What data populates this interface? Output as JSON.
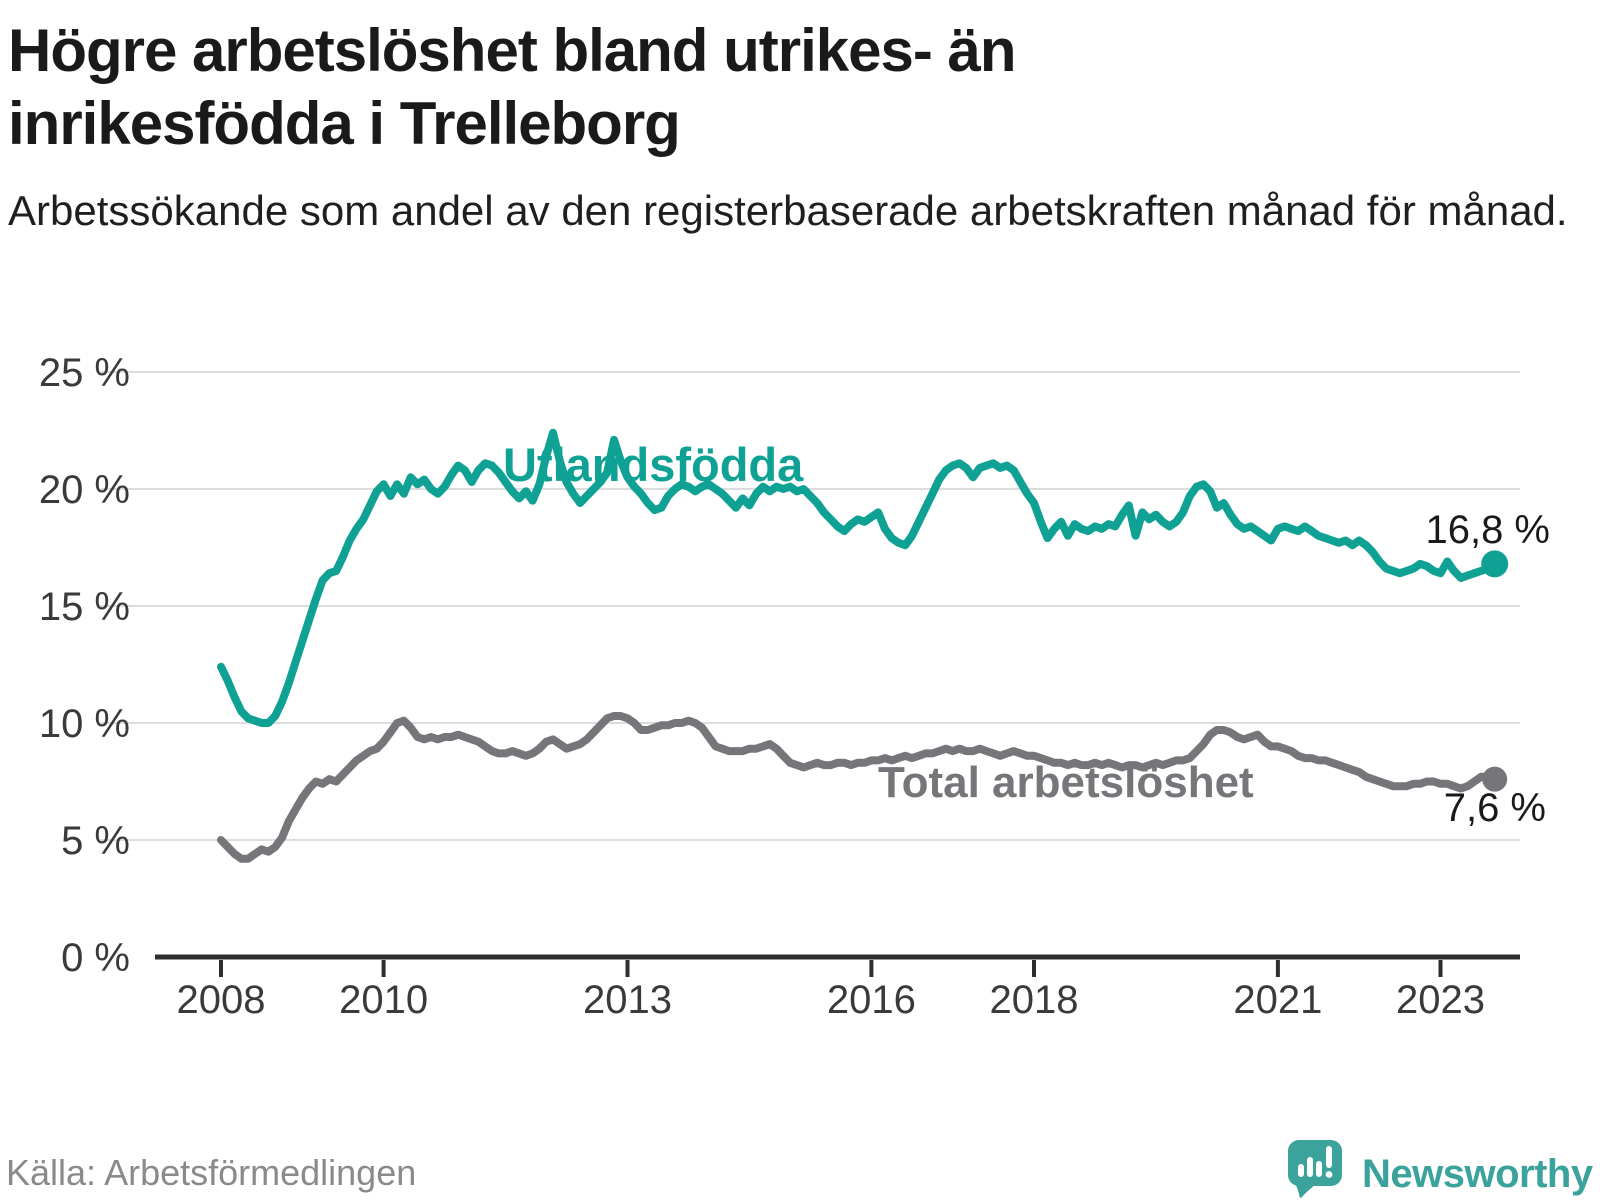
{
  "title": "Högre arbetslöshet bland utrikes- än inrikesfödda i Trelleborg",
  "subtitle": "Arbetssökande som andel av den registerbaserade arbetskraften månad för månad.",
  "source": "Källa: Arbetsförmedlingen",
  "brand": {
    "name": "Newsworthy",
    "color": "#3BA29C"
  },
  "colors": {
    "foreign_born_line": "#10A195",
    "total_line": "#76767A",
    "grid": "#DCDCDC",
    "axis": "#2E2E2E",
    "tick_label": "#3a3a3a",
    "value_label": "#1a1a1a"
  },
  "chart_data": {
    "type": "line",
    "title": "Högre arbetslöshet bland utrikes- än inrikesfödda i Trelleborg",
    "subtitle": "Arbetssökande som andel av den registerbaserade arbetskraften månad för månad.",
    "ylabel": "",
    "xlabel": "",
    "ylim": [
      0,
      25
    ],
    "grid": "horizontal",
    "legend_position": "inline-labels",
    "x_start": "2008-01",
    "x_end": "2023-09",
    "frequency": "monthly",
    "y_axis": {
      "ticks": [
        {
          "value": 0,
          "label": "0 %"
        },
        {
          "value": 5,
          "label": "5 %"
        },
        {
          "value": 10,
          "label": "10 %"
        },
        {
          "value": 15,
          "label": "15 %"
        },
        {
          "value": 20,
          "label": "20 %"
        },
        {
          "value": 25,
          "label": "25 %"
        }
      ]
    },
    "x_axis": {
      "ticks": [
        {
          "value": 2008,
          "label": "2008"
        },
        {
          "value": 2010,
          "label": "2010"
        },
        {
          "value": 2013,
          "label": "2013"
        },
        {
          "value": 2016,
          "label": "2016"
        },
        {
          "value": 2018,
          "label": "2018"
        },
        {
          "value": 2021,
          "label": "2021"
        },
        {
          "value": 2023,
          "label": "2023"
        }
      ]
    },
    "series": [
      {
        "name": "Utlandsfödda",
        "color": "#10A195",
        "end_label": "16,8 %",
        "end_value": 16.8,
        "values": [
          12.4,
          11.8,
          11.1,
          10.5,
          10.2,
          10.1,
          10.0,
          10.0,
          10.3,
          10.9,
          11.7,
          12.6,
          13.5,
          14.4,
          15.3,
          16.1,
          16.4,
          16.5,
          17.1,
          17.8,
          18.3,
          18.7,
          19.3,
          19.9,
          20.2,
          19.7,
          20.2,
          19.8,
          20.5,
          20.2,
          20.4,
          20.0,
          19.8,
          20.1,
          20.6,
          21.0,
          20.8,
          20.3,
          20.8,
          21.1,
          21.0,
          20.7,
          20.3,
          19.9,
          19.6,
          19.9,
          19.5,
          20.2,
          21.4,
          22.4,
          21.2,
          20.3,
          19.8,
          19.4,
          19.7,
          20.0,
          20.3,
          20.7,
          22.1,
          21.2,
          20.5,
          20.1,
          19.8,
          19.4,
          19.1,
          19.2,
          19.7,
          20.0,
          20.2,
          20.1,
          19.9,
          20.1,
          20.2,
          20.0,
          19.8,
          19.5,
          19.2,
          19.6,
          19.3,
          19.8,
          20.1,
          19.9,
          20.1,
          20.0,
          20.1,
          19.9,
          20.0,
          19.7,
          19.4,
          19.0,
          18.7,
          18.4,
          18.2,
          18.5,
          18.7,
          18.6,
          18.8,
          19.0,
          18.3,
          17.9,
          17.7,
          17.6,
          18.0,
          18.6,
          19.2,
          19.8,
          20.4,
          20.8,
          21.0,
          21.1,
          20.9,
          20.5,
          20.9,
          21.0,
          21.1,
          20.9,
          21.0,
          20.8,
          20.3,
          19.8,
          19.4,
          18.6,
          17.9,
          18.3,
          18.6,
          18.0,
          18.5,
          18.3,
          18.2,
          18.4,
          18.3,
          18.5,
          18.4,
          18.9,
          19.3,
          18.0,
          19.0,
          18.7,
          18.9,
          18.6,
          18.4,
          18.6,
          19.0,
          19.7,
          20.1,
          20.2,
          19.9,
          19.2,
          19.4,
          18.9,
          18.5,
          18.3,
          18.4,
          18.2,
          18.0,
          17.8,
          18.3,
          18.4,
          18.3,
          18.2,
          18.4,
          18.2,
          18.0,
          17.9,
          17.8,
          17.7,
          17.8,
          17.6,
          17.8,
          17.6,
          17.3,
          16.9,
          16.6,
          16.5,
          16.4,
          16.5,
          16.6,
          16.8,
          16.7,
          16.5,
          16.4,
          16.9,
          16.5,
          16.2,
          16.3,
          16.4,
          16.5,
          16.6,
          16.8
        ]
      },
      {
        "name": "Total arbetslöshet",
        "color": "#76767A",
        "end_label": "7,6 %",
        "end_value": 7.6,
        "values": [
          5.0,
          4.7,
          4.4,
          4.2,
          4.2,
          4.4,
          4.6,
          4.5,
          4.7,
          5.1,
          5.8,
          6.3,
          6.8,
          7.2,
          7.5,
          7.4,
          7.6,
          7.5,
          7.8,
          8.1,
          8.4,
          8.6,
          8.8,
          8.9,
          9.2,
          9.6,
          10.0,
          10.1,
          9.8,
          9.4,
          9.3,
          9.4,
          9.3,
          9.4,
          9.4,
          9.5,
          9.4,
          9.3,
          9.2,
          9.0,
          8.8,
          8.7,
          8.7,
          8.8,
          8.7,
          8.6,
          8.7,
          8.9,
          9.2,
          9.3,
          9.1,
          8.9,
          9.0,
          9.1,
          9.3,
          9.6,
          9.9,
          10.2,
          10.3,
          10.3,
          10.2,
          10.0,
          9.7,
          9.7,
          9.8,
          9.9,
          9.9,
          10.0,
          10.0,
          10.1,
          10.0,
          9.8,
          9.4,
          9.0,
          8.9,
          8.8,
          8.8,
          8.8,
          8.9,
          8.9,
          9.0,
          9.1,
          8.9,
          8.6,
          8.3,
          8.2,
          8.1,
          8.2,
          8.3,
          8.2,
          8.2,
          8.3,
          8.3,
          8.2,
          8.3,
          8.3,
          8.4,
          8.4,
          8.5,
          8.4,
          8.5,
          8.6,
          8.5,
          8.6,
          8.7,
          8.7,
          8.8,
          8.9,
          8.8,
          8.9,
          8.8,
          8.8,
          8.9,
          8.8,
          8.7,
          8.6,
          8.7,
          8.8,
          8.7,
          8.6,
          8.6,
          8.5,
          8.4,
          8.3,
          8.3,
          8.2,
          8.3,
          8.2,
          8.2,
          8.3,
          8.2,
          8.3,
          8.2,
          8.1,
          8.2,
          8.2,
          8.1,
          8.2,
          8.3,
          8.2,
          8.3,
          8.4,
          8.4,
          8.5,
          8.8,
          9.1,
          9.5,
          9.7,
          9.7,
          9.6,
          9.4,
          9.3,
          9.4,
          9.5,
          9.2,
          9.0,
          9.0,
          8.9,
          8.8,
          8.6,
          8.5,
          8.5,
          8.4,
          8.4,
          8.3,
          8.2,
          8.1,
          8.0,
          7.9,
          7.7,
          7.6,
          7.5,
          7.4,
          7.3,
          7.3,
          7.3,
          7.4,
          7.4,
          7.5,
          7.5,
          7.4,
          7.4,
          7.3,
          7.2,
          7.3,
          7.5,
          7.7,
          7.7,
          7.6
        ]
      }
    ]
  }
}
